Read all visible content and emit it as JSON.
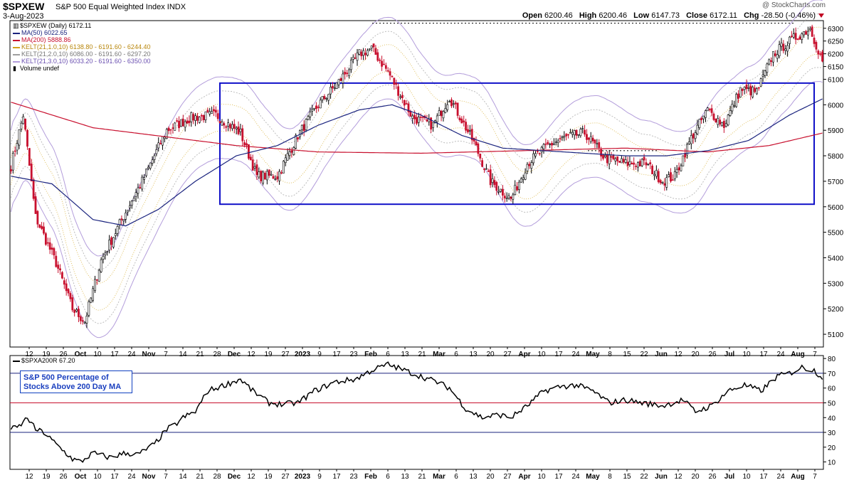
{
  "header": {
    "symbol": "$SPXEW",
    "name": "S&P 500 Equal Weighted Index",
    "exchange": "INDX",
    "date": "3-Aug-2023",
    "brand": "@ StockCharts.com",
    "open_label": "Open",
    "open": "6200.46",
    "high_label": "High",
    "high": "6200.46",
    "low_label": "Low",
    "low": "6147.73",
    "close_label": "Close",
    "close": "6172.11",
    "chg_label": "Chg",
    "chg": "-28.50 (-0.46%)",
    "down_color": "#c8102e"
  },
  "legend": {
    "price": "$SPXEW (Daily) 6172.11",
    "ma50": "MA(50) 6022.65",
    "ma200": "MA(200) 5888.86",
    "kelt1": "KELT(21,1.0,10) 6138.80 - 6191.60 - 6244.40",
    "kelt2": "KELT(21,2.0,10) 6086.00 - 6191.60 - 6297.20",
    "kelt3": "KELT(21,3.0,10) 6033.20 - 6191.60 - 6350.00",
    "volume": "Volume undef",
    "colors": {
      "ma50": "#1a237e",
      "ma200": "#c8102e",
      "kelt1": "#d4a017",
      "kelt2": "#9e9e9e",
      "kelt3": "#b39ddb"
    }
  },
  "indicator": {
    "legend": "$SPXA200R 67.20",
    "callout_line1": "S&P 500 Percentage of",
    "callout_line2": "Stocks Above 200 Day MA"
  },
  "chart_data": [
    {
      "type": "candlestick",
      "title": "$SPXEW S&P 500 Equal Weighted Index INDX",
      "y_ticks": [
        "5100",
        "5200",
        "5300",
        "5400",
        "5500",
        "5600",
        "5700",
        "5800",
        "5900",
        "6000",
        "6100",
        "6150",
        "6200",
        "6250",
        "6300"
      ],
      "ylim": [
        5050,
        6330
      ],
      "x_tick_labels": [
        "12",
        "19",
        "26",
        "Oct",
        "10",
        "17",
        "24",
        "Nov",
        "7",
        "14",
        "21",
        "28",
        "Dec",
        "12",
        "19",
        "27",
        "2023",
        "9",
        "17",
        "23",
        "Feb",
        "6",
        "13",
        "21",
        "Mar",
        "6",
        "13",
        "20",
        "27",
        "Apr",
        "10",
        "17",
        "24",
        "May",
        "8",
        "15",
        "22",
        "Jun",
        "12",
        "20",
        "26",
        "Jul",
        "10",
        "17",
        "24",
        "Aug",
        "7"
      ],
      "series_keypoints": {
        "close": [
          [
            0,
            5760
          ],
          [
            6,
            5960
          ],
          [
            12,
            5560
          ],
          [
            22,
            5380
          ],
          [
            30,
            5200
          ],
          [
            36,
            5150
          ],
          [
            44,
            5390
          ],
          [
            56,
            5580
          ],
          [
            64,
            5700
          ],
          [
            76,
            5900
          ],
          [
            88,
            5950
          ],
          [
            100,
            5960
          ],
          [
            112,
            5890
          ],
          [
            120,
            5720
          ],
          [
            130,
            5720
          ],
          [
            140,
            5880
          ],
          [
            150,
            6000
          ],
          [
            160,
            6090
          ],
          [
            170,
            6200
          ],
          [
            176,
            6220
          ],
          [
            184,
            6130
          ],
          [
            196,
            5950
          ],
          [
            206,
            5920
          ],
          [
            214,
            6030
          ],
          [
            226,
            5850
          ],
          [
            234,
            5700
          ],
          [
            244,
            5630
          ],
          [
            252,
            5770
          ],
          [
            262,
            5840
          ],
          [
            270,
            5870
          ],
          [
            280,
            5890
          ],
          [
            290,
            5790
          ],
          [
            300,
            5770
          ],
          [
            310,
            5770
          ],
          [
            318,
            5700
          ],
          [
            324,
            5720
          ],
          [
            332,
            5870
          ],
          [
            340,
            5980
          ],
          [
            348,
            5920
          ],
          [
            356,
            6060
          ],
          [
            364,
            6050
          ],
          [
            372,
            6200
          ],
          [
            382,
            6260
          ],
          [
            390,
            6300
          ],
          [
            396,
            6172
          ]
        ],
        "ma50": [
          [
            0,
            5720
          ],
          [
            20,
            5690
          ],
          [
            40,
            5550
          ],
          [
            56,
            5525
          ],
          [
            72,
            5590
          ],
          [
            90,
            5700
          ],
          [
            110,
            5800
          ],
          [
            130,
            5840
          ],
          [
            150,
            5920
          ],
          [
            170,
            5980
          ],
          [
            186,
            6000
          ],
          [
            200,
            5960
          ],
          [
            220,
            5880
          ],
          [
            240,
            5830
          ],
          [
            260,
            5820
          ],
          [
            280,
            5810
          ],
          [
            300,
            5800
          ],
          [
            320,
            5800
          ],
          [
            340,
            5820
          ],
          [
            360,
            5860
          ],
          [
            380,
            5960
          ],
          [
            396,
            6023
          ]
        ],
        "ma200": [
          [
            0,
            6010
          ],
          [
            40,
            5910
          ],
          [
            80,
            5870
          ],
          [
            110,
            5840
          ],
          [
            150,
            5815
          ],
          [
            200,
            5810
          ],
          [
            250,
            5820
          ],
          [
            300,
            5830
          ],
          [
            340,
            5815
          ],
          [
            370,
            5840
          ],
          [
            396,
            5889
          ]
        ]
      },
      "annotations": {
        "range_box": [
          5610,
          6085
        ],
        "resistance_dotted_level": 6320,
        "base_dotted_level": 5820
      }
    },
    {
      "type": "line",
      "name": "$SPXA200R",
      "y_ticks": [
        10,
        20,
        30,
        40,
        50,
        60,
        70,
        80
      ],
      "ylim": [
        5,
        82
      ],
      "reference_lines": [
        {
          "y": 70,
          "color": "#1a237e"
        },
        {
          "y": 50,
          "color": "#c8102e"
        },
        {
          "y": 30,
          "color": "#1a237e"
        }
      ],
      "keypoints": [
        [
          0,
          32
        ],
        [
          4,
          34
        ],
        [
          8,
          40
        ],
        [
          12,
          32
        ],
        [
          16,
          30
        ],
        [
          22,
          22
        ],
        [
          30,
          12
        ],
        [
          34,
          10
        ],
        [
          40,
          16
        ],
        [
          48,
          13
        ],
        [
          56,
          16
        ],
        [
          62,
          15
        ],
        [
          70,
          22
        ],
        [
          76,
          32
        ],
        [
          80,
          35
        ],
        [
          84,
          40
        ],
        [
          90,
          44
        ],
        [
          96,
          58
        ],
        [
          104,
          62
        ],
        [
          112,
          66
        ],
        [
          118,
          58
        ],
        [
          126,
          50
        ],
        [
          132,
          49
        ],
        [
          140,
          50
        ],
        [
          148,
          58
        ],
        [
          158,
          64
        ],
        [
          168,
          66
        ],
        [
          176,
          72
        ],
        [
          184,
          76
        ],
        [
          192,
          72
        ],
        [
          200,
          68
        ],
        [
          208,
          64
        ],
        [
          214,
          60
        ],
        [
          222,
          46
        ],
        [
          230,
          40
        ],
        [
          238,
          42
        ],
        [
          244,
          40
        ],
        [
          252,
          48
        ],
        [
          260,
          58
        ],
        [
          268,
          61
        ],
        [
          276,
          62
        ],
        [
          284,
          58
        ],
        [
          292,
          50
        ],
        [
          300,
          52
        ],
        [
          308,
          50
        ],
        [
          318,
          48
        ],
        [
          328,
          52
        ],
        [
          334,
          44
        ],
        [
          342,
          48
        ],
        [
          350,
          58
        ],
        [
          358,
          62
        ],
        [
          366,
          58
        ],
        [
          374,
          68
        ],
        [
          380,
          70
        ],
        [
          386,
          74
        ],
        [
          392,
          72
        ],
        [
          396,
          67.2
        ]
      ]
    }
  ]
}
